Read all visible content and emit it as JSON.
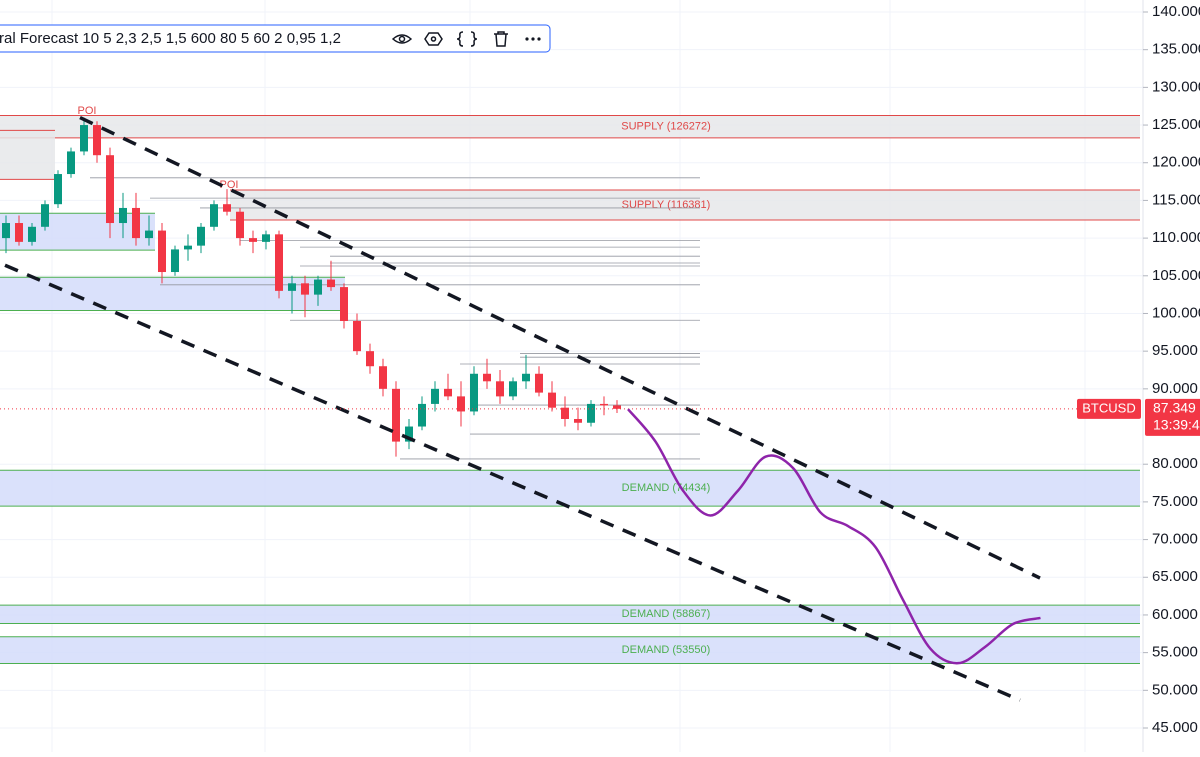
{
  "chart_data": {
    "type": "candlestick",
    "legend_text": "ral Forecast 10 5 2,3 2,5 1,5 600 80 5 60 2 0,95 1,2",
    "symbol": "BTCUSD",
    "last_price": {
      "value": 87349,
      "label": "87.349"
    },
    "countdown": "13:39:4",
    "up_color": "#089981",
    "down_color": "#f23645",
    "forecast_color": "#8e24aa",
    "grid": true,
    "ylim": [
      45000,
      140000
    ],
    "yticks": [
      {
        "value": 140000,
        "label": "140.000"
      },
      {
        "value": 135000,
        "label": "135.000"
      },
      {
        "value": 130000,
        "label": "130.000"
      },
      {
        "value": 125000,
        "label": "125.000"
      },
      {
        "value": 120000,
        "label": "120.000"
      },
      {
        "value": 115000,
        "label": "115.000"
      },
      {
        "value": 110000,
        "label": "110.000"
      },
      {
        "value": 105000,
        "label": "105.000"
      },
      {
        "value": 100000,
        "label": "100.000"
      },
      {
        "value": 95000,
        "label": "95.000"
      },
      {
        "value": 90000,
        "label": "90.000"
      },
      {
        "value": 80000,
        "label": "80.000"
      },
      {
        "value": 75000,
        "label": "75.000"
      },
      {
        "value": 70000,
        "label": "70.000"
      },
      {
        "value": 65000,
        "label": "65.000"
      },
      {
        "value": 60000,
        "label": "60.000"
      },
      {
        "value": 55000,
        "label": "55.000"
      },
      {
        "value": 50000,
        "label": "50.000"
      },
      {
        "value": 45000,
        "label": "45.000"
      }
    ],
    "candles": [
      [
        110000,
        113000,
        108000,
        112000
      ],
      [
        112000,
        113000,
        109000,
        109500
      ],
      [
        109500,
        112000,
        109000,
        111500
      ],
      [
        111500,
        115000,
        111000,
        114500
      ],
      [
        114500,
        119000,
        114000,
        118500
      ],
      [
        118500,
        122000,
        118000,
        121500
      ],
      [
        121500,
        126000,
        121000,
        125000
      ],
      [
        125000,
        125500,
        120000,
        121000
      ],
      [
        121000,
        122000,
        110000,
        112000
      ],
      [
        112000,
        116000,
        110000,
        114000
      ],
      [
        114000,
        116000,
        109000,
        110000
      ],
      [
        110000,
        113000,
        109000,
        111000
      ],
      [
        111000,
        112000,
        104000,
        105500
      ],
      [
        105500,
        109000,
        105000,
        108500
      ],
      [
        108500,
        110500,
        107000,
        109000
      ],
      [
        109000,
        112000,
        108000,
        111500
      ],
      [
        111500,
        115000,
        111000,
        114500
      ],
      [
        114500,
        116500,
        113000,
        113500
      ],
      [
        113500,
        114000,
        109000,
        110000
      ],
      [
        110000,
        111000,
        108000,
        109500
      ],
      [
        109500,
        111000,
        108500,
        110500
      ],
      [
        110500,
        111000,
        102000,
        103000
      ],
      [
        103000,
        105000,
        100000,
        104000
      ],
      [
        104000,
        105000,
        99500,
        102500
      ],
      [
        102500,
        105000,
        101000,
        104500
      ],
      [
        104500,
        107000,
        103000,
        103500
      ],
      [
        103500,
        104000,
        98000,
        99000
      ],
      [
        99000,
        100000,
        94500,
        95000
      ],
      [
        95000,
        96000,
        92000,
        93000
      ],
      [
        93000,
        94000,
        89000,
        90000
      ],
      [
        90000,
        91000,
        81000,
        83000
      ],
      [
        83000,
        86000,
        82000,
        85000
      ],
      [
        85000,
        89000,
        84500,
        88000
      ],
      [
        88000,
        91000,
        87000,
        90000
      ],
      [
        90000,
        92000,
        88500,
        89000
      ],
      [
        89000,
        91000,
        85000,
        87000
      ],
      [
        87000,
        93000,
        86500,
        92000
      ],
      [
        92000,
        94000,
        90000,
        91000
      ],
      [
        91000,
        92500,
        88000,
        89000
      ],
      [
        89000,
        91500,
        88500,
        91000
      ],
      [
        91000,
        94500,
        90000,
        92000
      ],
      [
        92000,
        93000,
        89000,
        89500
      ],
      [
        89500,
        91000,
        87000,
        87500
      ],
      [
        87500,
        89000,
        85000,
        86000
      ],
      [
        86000,
        87500,
        84500,
        85500
      ],
      [
        85500,
        88500,
        85000,
        88000
      ],
      [
        88000,
        89000,
        86500,
        87800
      ],
      [
        87800,
        88500,
        86800,
        87349
      ]
    ],
    "zones": [
      {
        "label": "SUPPLY (126272)",
        "top": 126272,
        "bottom": 123300,
        "fill": "#e6e7ea",
        "stroke": "#e04848"
      },
      {
        "label": "SUPPLY (116381)",
        "top": 116381,
        "bottom": 112400,
        "fill": "#e6e7ea",
        "stroke": "#e04848"
      },
      {
        "label": "DEMAND (74434)",
        "top": 79200,
        "bottom": 74434,
        "fill": "#d4dcfa",
        "stroke": "#4caf50"
      },
      {
        "label": "DEMAND (58867)",
        "top": 61300,
        "bottom": 58867,
        "fill": "#d4dcfa",
        "stroke": "#4caf50"
      },
      {
        "label": "DEMAND (53550)",
        "top": 57100,
        "bottom": 53550,
        "fill": "#d4dcfa",
        "stroke": "#4caf50"
      },
      {
        "top": 113300,
        "bottom": 108400,
        "fill": "#d4dcfa",
        "stroke": "#4caf50"
      },
      {
        "top": 104800,
        "bottom": 100400,
        "fill": "#d4dcfa",
        "stroke": "#4caf50"
      },
      {
        "top": 124300,
        "bottom": 117800,
        "fill": "#e6e7ea",
        "stroke": "#e04848"
      }
    ],
    "levels": [
      118000,
      115300,
      114000,
      109700,
      108800,
      107600,
      106700,
      106300,
      103800,
      99100,
      94700,
      94200,
      93300,
      87850,
      84000,
      80700
    ],
    "channel": [
      {
        "start": 126000,
        "end": 64900
      },
      {
        "start": 106400,
        "end": 48700
      }
    ],
    "annotations": [
      "POI",
      "POI"
    ],
    "forecast": [
      87300,
      83000,
      76500,
      73200,
      76500,
      81000,
      79500,
      73600,
      71800,
      69000,
      62000,
      55500,
      53600,
      55800,
      58800,
      59600
    ]
  }
}
